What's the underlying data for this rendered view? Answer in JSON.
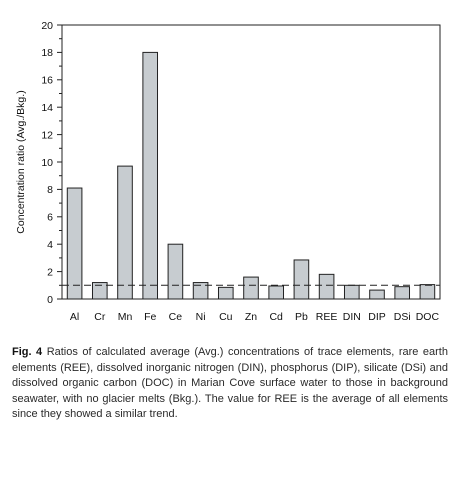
{
  "chart_data": {
    "type": "bar",
    "categories": [
      "Al",
      "Cr",
      "Mn",
      "Fe",
      "Ce",
      "Ni",
      "Cu",
      "Zn",
      "Cd",
      "Pb",
      "REE",
      "DIN",
      "DIP",
      "DSi",
      "DOC"
    ],
    "values": [
      8.1,
      1.2,
      9.7,
      18.0,
      4.0,
      1.2,
      0.85,
      1.6,
      0.95,
      2.85,
      1.8,
      1.0,
      0.65,
      0.9,
      1.05
    ],
    "xlabel": "",
    "ylabel": "Concentration  ratio (Avg./Bkg.)",
    "ylim": [
      0,
      20
    ],
    "yticks": [
      0,
      2,
      4,
      6,
      8,
      10,
      12,
      14,
      16,
      18,
      20
    ],
    "reference_line": 1,
    "grid": false,
    "bar_color": "#c7ccd0"
  },
  "caption": {
    "label": "Fig. 4",
    "text": "Ratios of calculated average (Avg.) concentrations of trace elements, rare earth elements (REE), dissolved inorganic nitrogen (DIN), phosphorus (DIP), silicate (DSi) and dissolved organic carbon (DOC) in Marian Cove surface water to those in background seawater, with no glacier melts (Bkg.). The value for REE is the average of all elements since they showed a similar trend."
  }
}
